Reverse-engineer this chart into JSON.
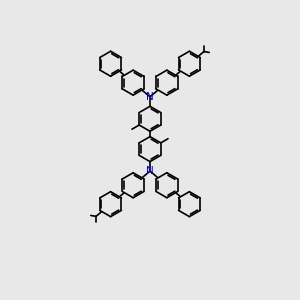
{
  "background_color": "#e8e8e8",
  "bond_color": "#000000",
  "nitrogen_color": "#0000cc",
  "lw": 1.2,
  "figsize": [
    3.0,
    3.0
  ],
  "dpi": 100,
  "r": 0.42,
  "xlim": [
    0,
    10
  ],
  "ylim": [
    0,
    10
  ]
}
